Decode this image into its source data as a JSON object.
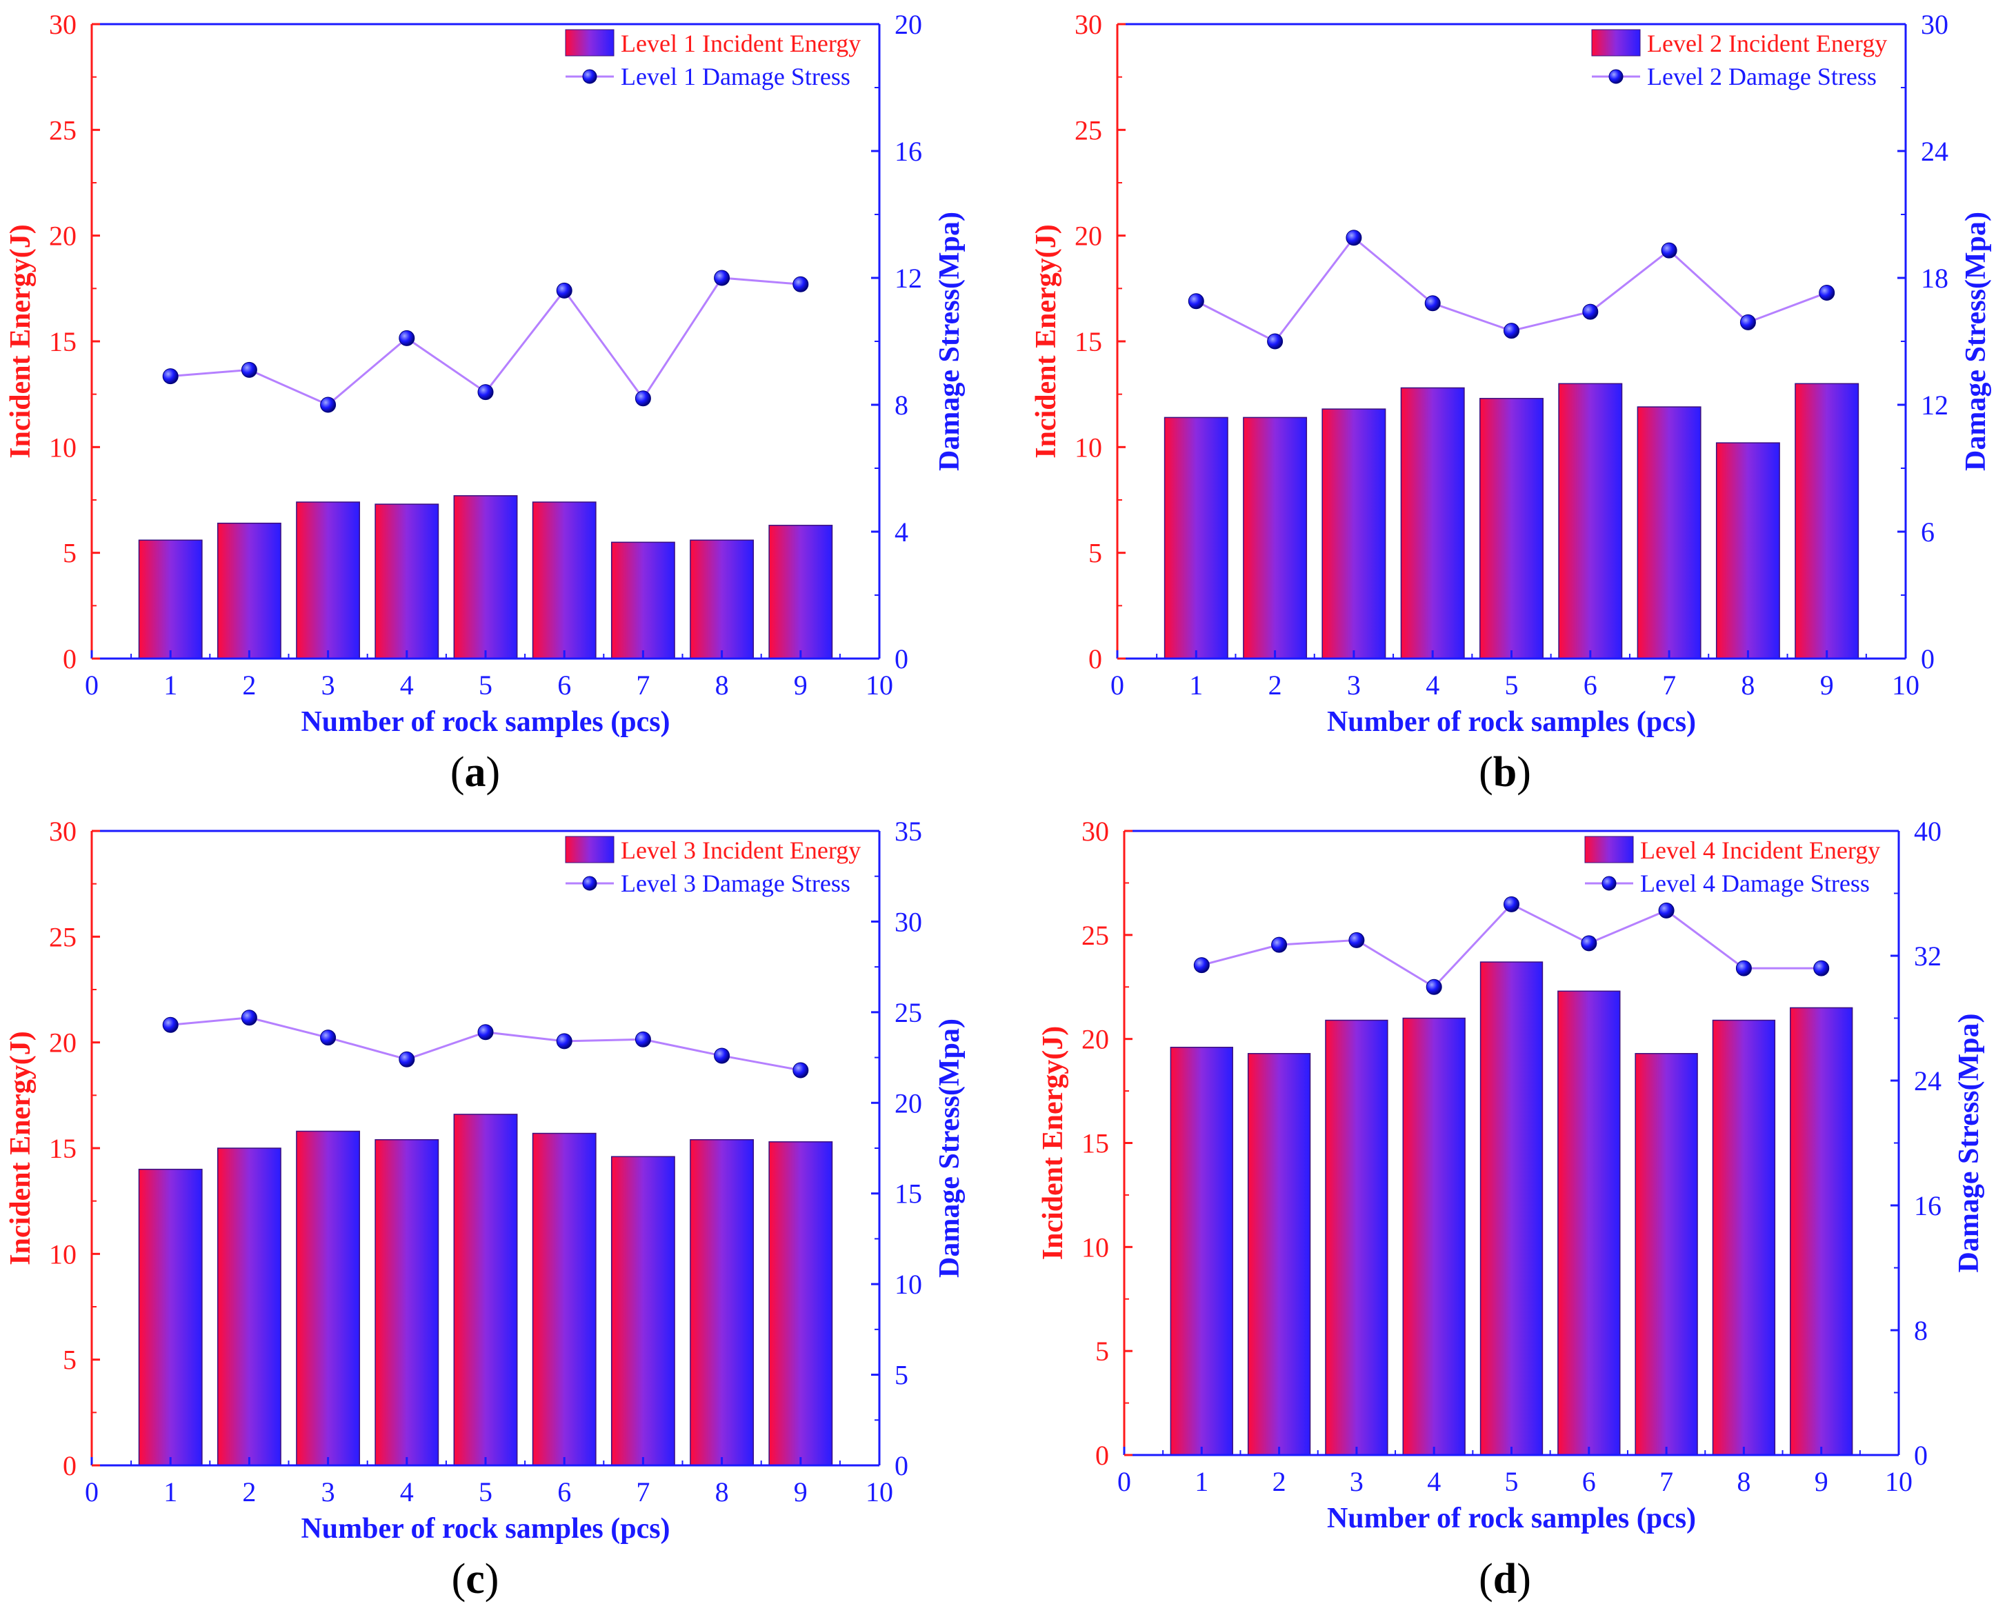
{
  "colors": {
    "left_axis": "#ff1a1a",
    "right_axis": "#1a1aff",
    "bar_gradient": [
      "#8a2be2",
      "#ff0044",
      "#2b1aff"
    ],
    "line": "#b580ff",
    "marker": "#1a1aff"
  },
  "chart_data": [
    {
      "panel": "a",
      "type": "bar",
      "xlabel": "Number of rock samples (pcs)",
      "ylabel": "Incident Energy(J)",
      "y2label": "Damage Stress(Mpa)",
      "xlim": [
        0,
        10
      ],
      "xticks": [
        "0",
        "1",
        "2",
        "3",
        "4",
        "5",
        "6",
        "7",
        "8",
        "9",
        "10"
      ],
      "categories": [
        1,
        2,
        3,
        4,
        5,
        6,
        7,
        8,
        9
      ],
      "ylim": [
        0,
        30
      ],
      "yticks": [
        "0",
        "5",
        "10",
        "15",
        "20",
        "25",
        "30"
      ],
      "y2lim": [
        0,
        20
      ],
      "y2ticks": [
        "0",
        "4",
        "8",
        "12",
        "16",
        "20"
      ],
      "series": [
        {
          "name": "Level 1 Incident Energy",
          "type": "bar",
          "axis": "left",
          "values": [
            5.6,
            6.4,
            7.4,
            7.3,
            7.7,
            7.4,
            5.5,
            5.6,
            6.3
          ]
        },
        {
          "name": "Level 1 Damage Stress",
          "type": "line",
          "axis": "right",
          "values": [
            8.9,
            9.1,
            8.0,
            10.1,
            8.4,
            11.6,
            8.2,
            12.0,
            11.8
          ]
        }
      ]
    },
    {
      "panel": "b",
      "type": "bar",
      "xlabel": "Number of rock samples (pcs)",
      "ylabel": "Incident Energy(J)",
      "y2label": "Damage Stress(Mpa)",
      "xlim": [
        0,
        10
      ],
      "xticks": [
        "0",
        "1",
        "2",
        "3",
        "4",
        "5",
        "6",
        "7",
        "8",
        "9",
        "10"
      ],
      "categories": [
        1,
        2,
        3,
        4,
        5,
        6,
        7,
        8,
        9
      ],
      "ylim": [
        0,
        30
      ],
      "yticks": [
        "0",
        "5",
        "10",
        "15",
        "20",
        "25",
        "30"
      ],
      "y2lim": [
        0,
        30
      ],
      "y2ticks": [
        "0",
        "6",
        "12",
        "18",
        "24",
        "30"
      ],
      "series": [
        {
          "name": "Level 2 Incident Energy",
          "type": "bar",
          "axis": "left",
          "values": [
            11.4,
            11.4,
            11.8,
            12.8,
            12.3,
            13.0,
            11.9,
            10.2,
            13.0
          ]
        },
        {
          "name": "Level 2 Damage Stress",
          "type": "line",
          "axis": "right",
          "values": [
            16.9,
            15.0,
            19.9,
            16.8,
            15.5,
            16.4,
            19.3,
            15.9,
            17.3
          ]
        }
      ]
    },
    {
      "panel": "c",
      "type": "bar",
      "xlabel": "Number of rock samples (pcs)",
      "ylabel": "Incident Energy(J)",
      "y2label": "Damage Stress(Mpa)",
      "xlim": [
        0,
        10
      ],
      "xticks": [
        "0",
        "1",
        "2",
        "3",
        "4",
        "5",
        "6",
        "7",
        "8",
        "9",
        "10"
      ],
      "categories": [
        1,
        2,
        3,
        4,
        5,
        6,
        7,
        8,
        9
      ],
      "ylim": [
        0,
        30
      ],
      "yticks": [
        "0",
        "5",
        "10",
        "15",
        "20",
        "25",
        "30"
      ],
      "y2lim": [
        0,
        35
      ],
      "y2ticks": [
        "0",
        "5",
        "10",
        "15",
        "20",
        "25",
        "30",
        "35"
      ],
      "series": [
        {
          "name": "Level 3 Incident Energy",
          "type": "bar",
          "axis": "left",
          "values": [
            14.0,
            15.0,
            15.8,
            15.4,
            16.6,
            15.7,
            14.6,
            15.4,
            15.3
          ]
        },
        {
          "name": "Level 3 Damage Stress",
          "type": "line",
          "axis": "right",
          "values": [
            24.3,
            24.7,
            23.6,
            22.4,
            23.9,
            23.4,
            23.5,
            22.6,
            21.8
          ]
        }
      ]
    },
    {
      "panel": "d",
      "type": "bar",
      "xlabel": "Number of rock samples (pcs)",
      "ylabel": "Incident Energy(J)",
      "y2label": "Damage Stress(Mpa)",
      "xlim": [
        0,
        10
      ],
      "xticks": [
        "0",
        "1",
        "2",
        "3",
        "4",
        "5",
        "6",
        "7",
        "8",
        "9",
        "10"
      ],
      "categories": [
        1,
        2,
        3,
        4,
        5,
        6,
        7,
        8,
        9
      ],
      "ylim": [
        0,
        30
      ],
      "yticks": [
        "0",
        "5",
        "10",
        "15",
        "20",
        "25",
        "30"
      ],
      "y2lim": [
        0,
        40
      ],
      "y2ticks": [
        "0",
        "8",
        "16",
        "24",
        "32",
        "40"
      ],
      "series": [
        {
          "name": "Level 4 Incident Energy",
          "type": "bar",
          "axis": "left",
          "values": [
            19.6,
            19.3,
            20.9,
            21.0,
            23.7,
            22.3,
            19.3,
            20.9,
            21.5
          ]
        },
        {
          "name": "Level 4 Damage Stress",
          "type": "line",
          "axis": "right",
          "values": [
            31.4,
            32.7,
            33.0,
            30.0,
            35.3,
            32.8,
            34.9,
            31.2,
            31.2
          ]
        }
      ]
    }
  ],
  "panel_labels": [
    "a",
    "b",
    "c",
    "d"
  ]
}
